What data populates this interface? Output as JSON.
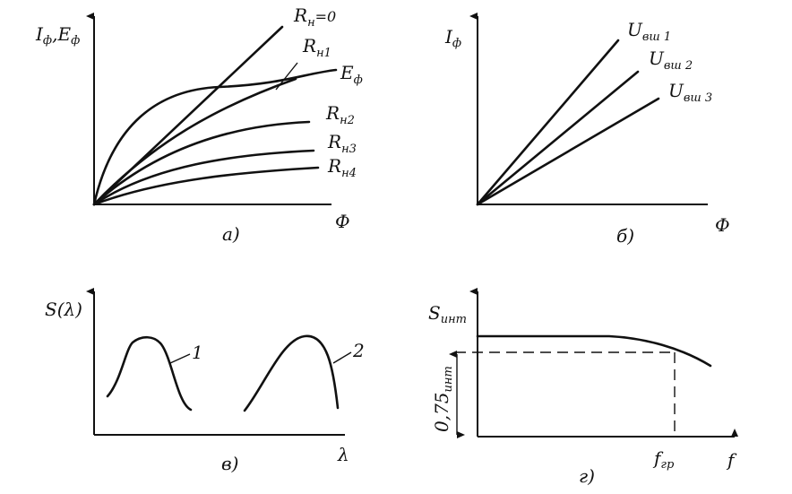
{
  "panels": [
    {
      "caption": "а)",
      "y_label": {
        "main": "I",
        "sub": "ф",
        "sep": ",",
        "main2": "E",
        "sub2": "ф"
      },
      "x_label": "Ф",
      "curves": [
        {
          "main": "R",
          "sub": "н",
          "rest": "=0"
        },
        {
          "main": "R",
          "sub": "н1"
        },
        {
          "main": "E",
          "sub": "ф"
        },
        {
          "main": "R",
          "sub": "н2"
        },
        {
          "main": "R",
          "sub": "н3"
        },
        {
          "main": "R",
          "sub": "н4"
        }
      ]
    },
    {
      "caption": "б)",
      "y_label": {
        "main": "I",
        "sub": "ф"
      },
      "x_label": "Ф",
      "curves": [
        {
          "main": "U",
          "sub": "вш 1"
        },
        {
          "main": "U",
          "sub": "вш 2"
        },
        {
          "main": "U",
          "sub": "вш 3"
        }
      ]
    },
    {
      "caption": "в)",
      "y_label": "S(λ)",
      "x_label": "λ",
      "curves": [
        "1",
        "2"
      ]
    },
    {
      "caption": "г)",
      "y_label": {
        "main": "S",
        "sub": "инт"
      },
      "x_label": "f",
      "level": {
        "main": "0,75",
        "sub": "инт"
      },
      "cutoff": {
        "main": "f",
        "sub": "гр"
      }
    }
  ]
}
